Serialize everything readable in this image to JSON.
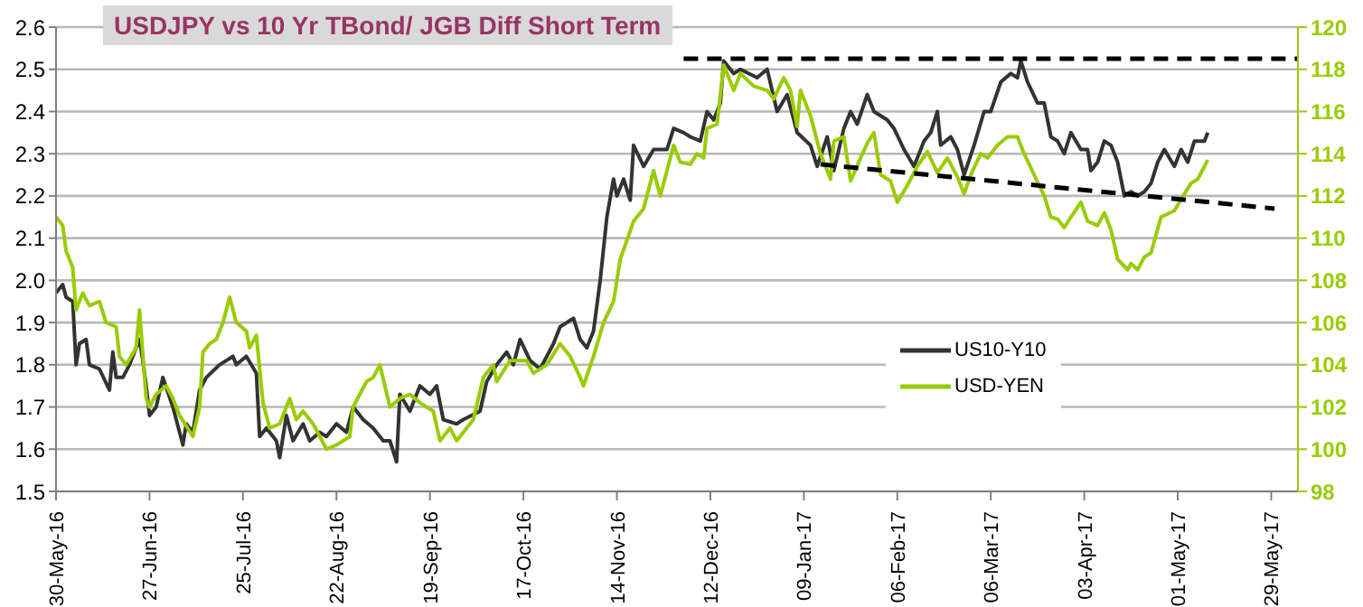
{
  "chart_data": {
    "type": "line",
    "title": "USDJPY vs 10 Yr TBond/ JGB Diff Short Term",
    "xlim": [
      "2016-05-30",
      "2017-06-06"
    ],
    "xticks": [
      {
        "value": "2016-05-30",
        "label": "30-May-16"
      },
      {
        "value": "2016-06-27",
        "label": "27-Jun-16"
      },
      {
        "value": "2016-07-25",
        "label": "25-Jul-16"
      },
      {
        "value": "2016-08-22",
        "label": "22-Aug-16"
      },
      {
        "value": "2016-09-19",
        "label": "19-Sep-16"
      },
      {
        "value": "2016-10-17",
        "label": "17-Oct-16"
      },
      {
        "value": "2016-11-14",
        "label": "14-Nov-16"
      },
      {
        "value": "2016-12-12",
        "label": "12-Dec-16"
      },
      {
        "value": "2017-01-09",
        "label": "09-Jan-17"
      },
      {
        "value": "2017-02-06",
        "label": "06-Feb-17"
      },
      {
        "value": "2017-03-06",
        "label": "06-Mar-17"
      },
      {
        "value": "2017-04-03",
        "label": "03-Apr-17"
      },
      {
        "value": "2017-05-01",
        "label": "01-May-17"
      },
      {
        "value": "2017-05-29",
        "label": "29-May-17"
      }
    ],
    "ylim": [
      1.5,
      2.6
    ],
    "yticks": [
      1.5,
      1.6,
      1.7,
      1.8,
      1.9,
      {
        "value": 2,
        "label": "2.0"
      },
      2.1,
      2.2,
      2.3,
      2.4,
      2.5,
      2.6
    ],
    "y2lim": [
      98,
      120
    ],
    "y2ticks": [
      98,
      100,
      102,
      104,
      106,
      108,
      110,
      112,
      114,
      116,
      118,
      120
    ],
    "grid": "y",
    "legend": "bottom right",
    "marker": "none",
    "line_style": "solid",
    "series": [
      {
        "name": "US10-Y10",
        "color": "#333333",
        "x": [
          "2016-05-30",
          "2016-06-01",
          "2016-06-02",
          "2016-06-04",
          "2016-06-05",
          "2016-06-06",
          "2016-06-08",
          "2016-06-09",
          "2016-06-12",
          "2016-06-15",
          "2016-06-16",
          "2016-06-17",
          "2016-06-19",
          "2016-06-21",
          "2016-06-24",
          "2016-06-25",
          "2016-06-26",
          "2016-06-27",
          "2016-06-29",
          "2016-07-01",
          "2016-07-04",
          "2016-07-07",
          "2016-07-08",
          "2016-07-10",
          "2016-07-12",
          "2016-07-14",
          "2016-07-18",
          "2016-07-22",
          "2016-07-23",
          "2016-07-26",
          "2016-07-29",
          "2016-07-30",
          "2016-08-01",
          "2016-08-04",
          "2016-08-05",
          "2016-08-07",
          "2016-08-09",
          "2016-08-12",
          "2016-08-14",
          "2016-08-17",
          "2016-08-19",
          "2016-08-22",
          "2016-08-25",
          "2016-08-27",
          "2016-08-30",
          "2016-09-02",
          "2016-09-05",
          "2016-09-07",
          "2016-09-09",
          "2016-09-10",
          "2016-09-13",
          "2016-09-16",
          "2016-09-19",
          "2016-09-21",
          "2016-09-23",
          "2016-09-27",
          "2016-09-29",
          "2016-10-04",
          "2016-10-06",
          "2016-10-09",
          "2016-10-12",
          "2016-10-14",
          "2016-10-16",
          "2016-10-19",
          "2016-10-22",
          "2016-10-26",
          "2016-10-28",
          "2016-11-01",
          "2016-11-03",
          "2016-11-05",
          "2016-11-07",
          "2016-11-09",
          "2016-11-11",
          "2016-11-13",
          "2016-11-14",
          "2016-11-16",
          "2016-11-18",
          "2016-11-19",
          "2016-11-22",
          "2016-11-25",
          "2016-11-29",
          "2016-12-01",
          "2016-12-04",
          "2016-12-06",
          "2016-12-09",
          "2016-12-11",
          "2016-12-13",
          "2016-12-15",
          "2016-12-16",
          "2016-12-19",
          "2016-12-21",
          "2016-12-26",
          "2016-12-29",
          "2017-01-01",
          "2017-01-04",
          "2017-01-07",
          "2017-01-11",
          "2017-01-13",
          "2017-01-16",
          "2017-01-18",
          "2017-01-21",
          "2017-01-23",
          "2017-01-25",
          "2017-01-28",
          "2017-01-30",
          "2017-02-03",
          "2017-02-05",
          "2017-02-08",
          "2017-02-11",
          "2017-02-14",
          "2017-02-16",
          "2017-02-18",
          "2017-02-19",
          "2017-02-22",
          "2017-02-24",
          "2017-02-26",
          "2017-03-01",
          "2017-03-04",
          "2017-03-06",
          "2017-03-09",
          "2017-03-12",
          "2017-03-14",
          "2017-03-15",
          "2017-03-17",
          "2017-03-20",
          "2017-03-22",
          "2017-03-24",
          "2017-03-26",
          "2017-03-28",
          "2017-03-30",
          "2017-04-02",
          "2017-04-04",
          "2017-04-05",
          "2017-04-07",
          "2017-04-09",
          "2017-04-11",
          "2017-04-13",
          "2017-04-15",
          "2017-04-17",
          "2017-04-19",
          "2017-04-21",
          "2017-04-23",
          "2017-04-25",
          "2017-04-27",
          "2017-04-30",
          "2017-05-02",
          "2017-05-04",
          "2017-05-06",
          "2017-05-09",
          "2017-05-10"
        ],
        "values": [
          1.97,
          1.99,
          1.96,
          1.95,
          1.8,
          1.85,
          1.86,
          1.8,
          1.79,
          1.74,
          1.83,
          1.77,
          1.77,
          1.8,
          1.86,
          1.81,
          1.75,
          1.68,
          1.7,
          1.77,
          1.7,
          1.61,
          1.66,
          1.64,
          1.74,
          1.77,
          1.8,
          1.82,
          1.8,
          1.82,
          1.78,
          1.63,
          1.65,
          1.62,
          1.58,
          1.68,
          1.62,
          1.66,
          1.62,
          1.64,
          1.63,
          1.66,
          1.64,
          1.7,
          1.67,
          1.65,
          1.62,
          1.62,
          1.57,
          1.73,
          1.69,
          1.75,
          1.73,
          1.75,
          1.67,
          1.66,
          1.67,
          1.69,
          1.76,
          1.8,
          1.83,
          1.8,
          1.86,
          1.81,
          1.79,
          1.85,
          1.89,
          1.91,
          1.86,
          1.84,
          1.88,
          2.0,
          2.15,
          2.24,
          2.2,
          2.24,
          2.19,
          2.32,
          2.27,
          2.31,
          2.31,
          2.36,
          2.35,
          2.34,
          2.33,
          2.4,
          2.38,
          2.42,
          2.52,
          2.49,
          2.5,
          2.48,
          2.5,
          2.4,
          2.44,
          2.35,
          2.32,
          2.27,
          2.34,
          2.26,
          2.36,
          2.4,
          2.37,
          2.44,
          2.4,
          2.38,
          2.36,
          2.31,
          2.27,
          2.33,
          2.35,
          2.4,
          2.32,
          2.34,
          2.31,
          2.25,
          2.32,
          2.4,
          2.4,
          2.47,
          2.49,
          2.48,
          2.52,
          2.47,
          2.42,
          2.42,
          2.34,
          2.33,
          2.3,
          2.35,
          2.31,
          2.31,
          2.26,
          2.28,
          2.33,
          2.32,
          2.28,
          2.2,
          2.21,
          2.2,
          2.21,
          2.23,
          2.28,
          2.31,
          2.27,
          2.31,
          2.28,
          2.33,
          2.33,
          2.35
        ]
      },
      {
        "name": "USD-YEN",
        "color": "#99cc00",
        "axis": "y2",
        "x": [
          "2016-05-30",
          "2016-06-01",
          "2016-06-02",
          "2016-06-04",
          "2016-06-05",
          "2016-06-07",
          "2016-06-09",
          "2016-06-12",
          "2016-06-14",
          "2016-06-17",
          "2016-06-18",
          "2016-06-20",
          "2016-06-23",
          "2016-06-24",
          "2016-06-26",
          "2016-06-27",
          "2016-06-29",
          "2016-07-02",
          "2016-07-04",
          "2016-07-06",
          "2016-07-10",
          "2016-07-12",
          "2016-07-13",
          "2016-07-15",
          "2016-07-17",
          "2016-07-19",
          "2016-07-21",
          "2016-07-23",
          "2016-07-26",
          "2016-07-27",
          "2016-07-29",
          "2016-07-31",
          "2016-08-02",
          "2016-08-05",
          "2016-08-08",
          "2016-08-10",
          "2016-08-12",
          "2016-08-15",
          "2016-08-19",
          "2016-08-22",
          "2016-08-26",
          "2016-08-27",
          "2016-08-31",
          "2016-09-02",
          "2016-09-04",
          "2016-09-07",
          "2016-09-10",
          "2016-09-13",
          "2016-09-16",
          "2016-09-20",
          "2016-09-22",
          "2016-09-25",
          "2016-09-27",
          "2016-10-02",
          "2016-10-05",
          "2016-10-08",
          "2016-10-09",
          "2016-10-13",
          "2016-10-18",
          "2016-10-20",
          "2016-10-24",
          "2016-10-28",
          "2016-10-31",
          "2016-11-03",
          "2016-11-04",
          "2016-11-07",
          "2016-11-10",
          "2016-11-13",
          "2016-11-15",
          "2016-11-19",
          "2016-11-22",
          "2016-11-25",
          "2016-11-27",
          "2016-12-01",
          "2016-12-03",
          "2016-12-06",
          "2016-12-08",
          "2016-12-10",
          "2016-12-11",
          "2016-12-14",
          "2016-12-16",
          "2016-12-19",
          "2016-12-21",
          "2016-12-25",
          "2016-12-29",
          "2016-12-31",
          "2017-01-03",
          "2017-01-05",
          "2017-01-07",
          "2017-01-08",
          "2017-01-11",
          "2017-01-14",
          "2017-01-17",
          "2017-01-18",
          "2017-01-21",
          "2017-01-23",
          "2017-01-26",
          "2017-01-28",
          "2017-01-30",
          "2017-02-01",
          "2017-02-04",
          "2017-02-06",
          "2017-02-09",
          "2017-02-12",
          "2017-02-15",
          "2017-02-18",
          "2017-02-21",
          "2017-02-24",
          "2017-02-26",
          "2017-02-28",
          "2017-03-03",
          "2017-03-05",
          "2017-03-08",
          "2017-03-11",
          "2017-03-14",
          "2017-03-16",
          "2017-03-19",
          "2017-03-22",
          "2017-03-24",
          "2017-03-26",
          "2017-03-28",
          "2017-03-30",
          "2017-04-02",
          "2017-04-04",
          "2017-04-07",
          "2017-04-09",
          "2017-04-11",
          "2017-04-13",
          "2017-04-16",
          "2017-04-17",
          "2017-04-19",
          "2017-04-21",
          "2017-04-23",
          "2017-04-26",
          "2017-04-30",
          "2017-05-03",
          "2017-05-05",
          "2017-05-07",
          "2017-05-09",
          "2017-05-10"
        ],
        "values": [
          111.0,
          110.6,
          109.4,
          108.6,
          106.6,
          107.4,
          106.8,
          107.0,
          106.0,
          105.8,
          104.4,
          104.0,
          104.8,
          106.6,
          102.4,
          102.0,
          102.6,
          103.0,
          102.4,
          101.6,
          100.6,
          102.0,
          104.6,
          105.0,
          105.2,
          106.0,
          107.2,
          106.0,
          105.6,
          104.8,
          105.4,
          102.2,
          101.0,
          101.2,
          102.4,
          101.4,
          101.8,
          101.2,
          100.0,
          100.2,
          100.6,
          102.0,
          103.2,
          103.4,
          104.0,
          102.0,
          102.4,
          102.6,
          102.2,
          101.8,
          100.4,
          101.0,
          100.4,
          101.4,
          103.4,
          104.0,
          103.2,
          104.2,
          104.2,
          103.6,
          104.0,
          105.0,
          104.4,
          103.4,
          103.0,
          104.4,
          106.0,
          107.0,
          109.0,
          110.8,
          111.4,
          113.2,
          112.0,
          114.4,
          113.6,
          113.5,
          114.0,
          113.8,
          115.2,
          115.4,
          118.2,
          117.0,
          117.8,
          117.2,
          117.0,
          116.6,
          117.6,
          117.0,
          115.3,
          117.0,
          115.8,
          114.0,
          112.8,
          114.6,
          114.8,
          112.7,
          113.8,
          114.5,
          115.0,
          113.0,
          112.7,
          111.7,
          112.5,
          113.4,
          114.1,
          113.1,
          113.8,
          112.9,
          112.1,
          113.0,
          114.0,
          113.8,
          114.4,
          114.8,
          114.8,
          114.0,
          113.0,
          112.0,
          111.0,
          110.9,
          110.5,
          111.0,
          111.7,
          110.8,
          110.6,
          111.2,
          110.4,
          109.0,
          108.5,
          108.8,
          108.5,
          109.1,
          109.3,
          111.0,
          111.3,
          112.1,
          112.6,
          112.8,
          113.4,
          113.7
        ]
      },
      {
        "color": "#000000",
        "axis": "y2",
        "line_style": "dashed",
        "x": [
          "2016-12-04",
          "2017-06-06"
        ],
        "values": [
          118.5,
          118.5
        ]
      },
      {
        "color": "#000000",
        "axis": "y2",
        "line_style": "dashed",
        "x": [
          "2017-01-14",
          "2017-05-30"
        ],
        "values": [
          113.5,
          111.4
        ]
      }
    ]
  }
}
